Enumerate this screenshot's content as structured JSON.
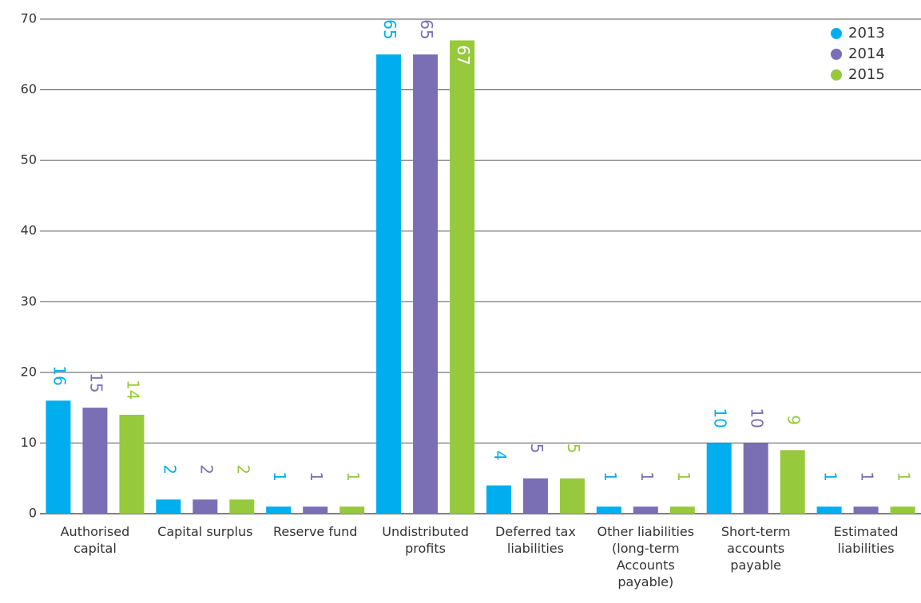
{
  "chart_data": {
    "type": "bar",
    "categories": [
      "Authorised capital",
      "Capital surplus",
      "Reserve fund",
      "Undistributed profits",
      "Deferred tax liabilities",
      "Other liabilities (long-term Accounts payable)",
      "Short-term accounts payable",
      "Estimated liabilities"
    ],
    "series": [
      {
        "name": "2013",
        "color": "#00aeef",
        "values": [
          16,
          2,
          1,
          65,
          4,
          1,
          10,
          1
        ]
      },
      {
        "name": "2014",
        "color": "#7a6fb5",
        "values": [
          15,
          2,
          1,
          65,
          5,
          1,
          10,
          1
        ]
      },
      {
        "name": "2015",
        "color": "#97c93d",
        "values": [
          14,
          2,
          1,
          67,
          5,
          1,
          9,
          1
        ]
      }
    ],
    "ylim": [
      0,
      70
    ],
    "yticks": [
      0,
      10,
      20,
      30,
      40,
      50,
      60,
      70
    ],
    "grid": true,
    "legend": "top-right"
  }
}
